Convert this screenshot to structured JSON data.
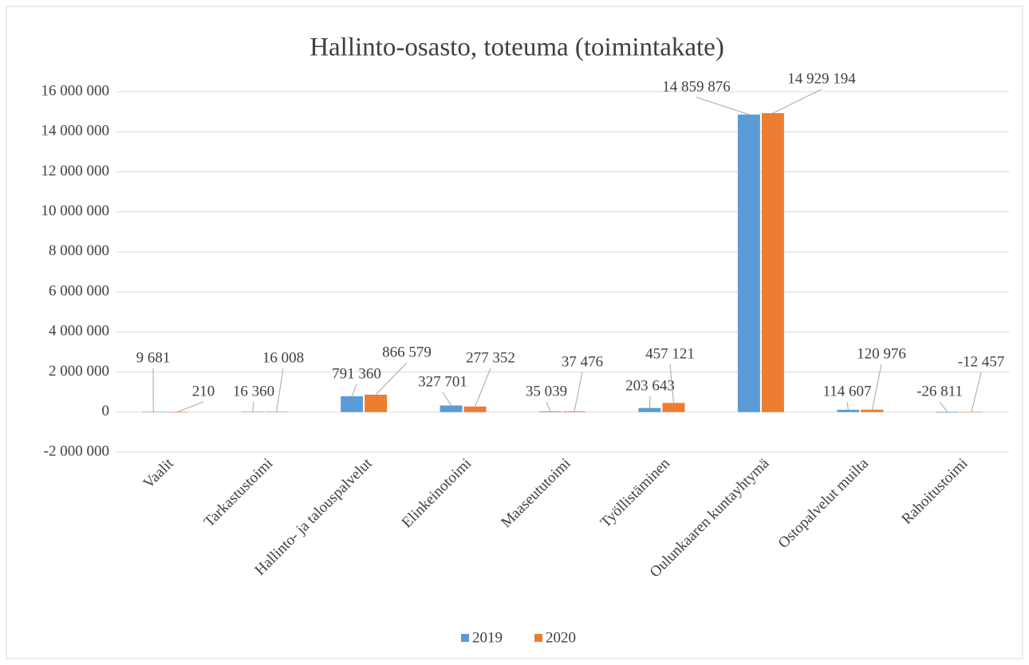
{
  "chart_data": {
    "type": "bar",
    "title": "Hallinto-osasto, toteuma (toimintakate)",
    "categories": [
      "Vaalit",
      "Tarkastustoimi",
      "Hallinto- ja talouspalvelut",
      "Elinkeinotoimi",
      "Maaseututoimi",
      "Työllistäminen",
      "Oulunkaaren kuntayhtymä",
      "Ostopalvelut muilta",
      "Rahoitustoimi"
    ],
    "series": [
      {
        "name": "2019",
        "color": "#5b9bd5",
        "values": [
          9681,
          16360,
          791360,
          327701,
          35039,
          203643,
          14859876,
          114607,
          -26811
        ],
        "value_labels": [
          "9 681",
          "16 360",
          "791 360",
          "327 701",
          "35 039",
          "203 643",
          "14 859 876",
          "114 607",
          "-26 811"
        ]
      },
      {
        "name": "2020",
        "color": "#ed7d31",
        "values": [
          210,
          16008,
          866579,
          277352,
          37476,
          457121,
          14929194,
          120976,
          -12457
        ],
        "value_labels": [
          "210",
          "16 008",
          "866 579",
          "277 352",
          "37 476",
          "457 121",
          "14 929 194",
          "120 976",
          "-12 457"
        ]
      }
    ],
    "ylim": [
      -2000000,
      16000000
    ],
    "yticks": [
      {
        "value": -2000000,
        "label": "-2 000 000"
      },
      0,
      {
        "value": 2000000,
        "label": "2 000 000"
      },
      {
        "value": 4000000,
        "label": "4 000 000"
      },
      {
        "value": 6000000,
        "label": "6 000 000"
      },
      {
        "value": 8000000,
        "label": "8 000 000"
      },
      {
        "value": 10000000,
        "label": "10 000 000"
      },
      {
        "value": 12000000,
        "label": "12 000 000"
      },
      {
        "value": 14000000,
        "label": "14 000 000"
      },
      {
        "value": 16000000,
        "label": "16 000 000"
      }
    ],
    "grid": true,
    "legend": "bottom"
  }
}
